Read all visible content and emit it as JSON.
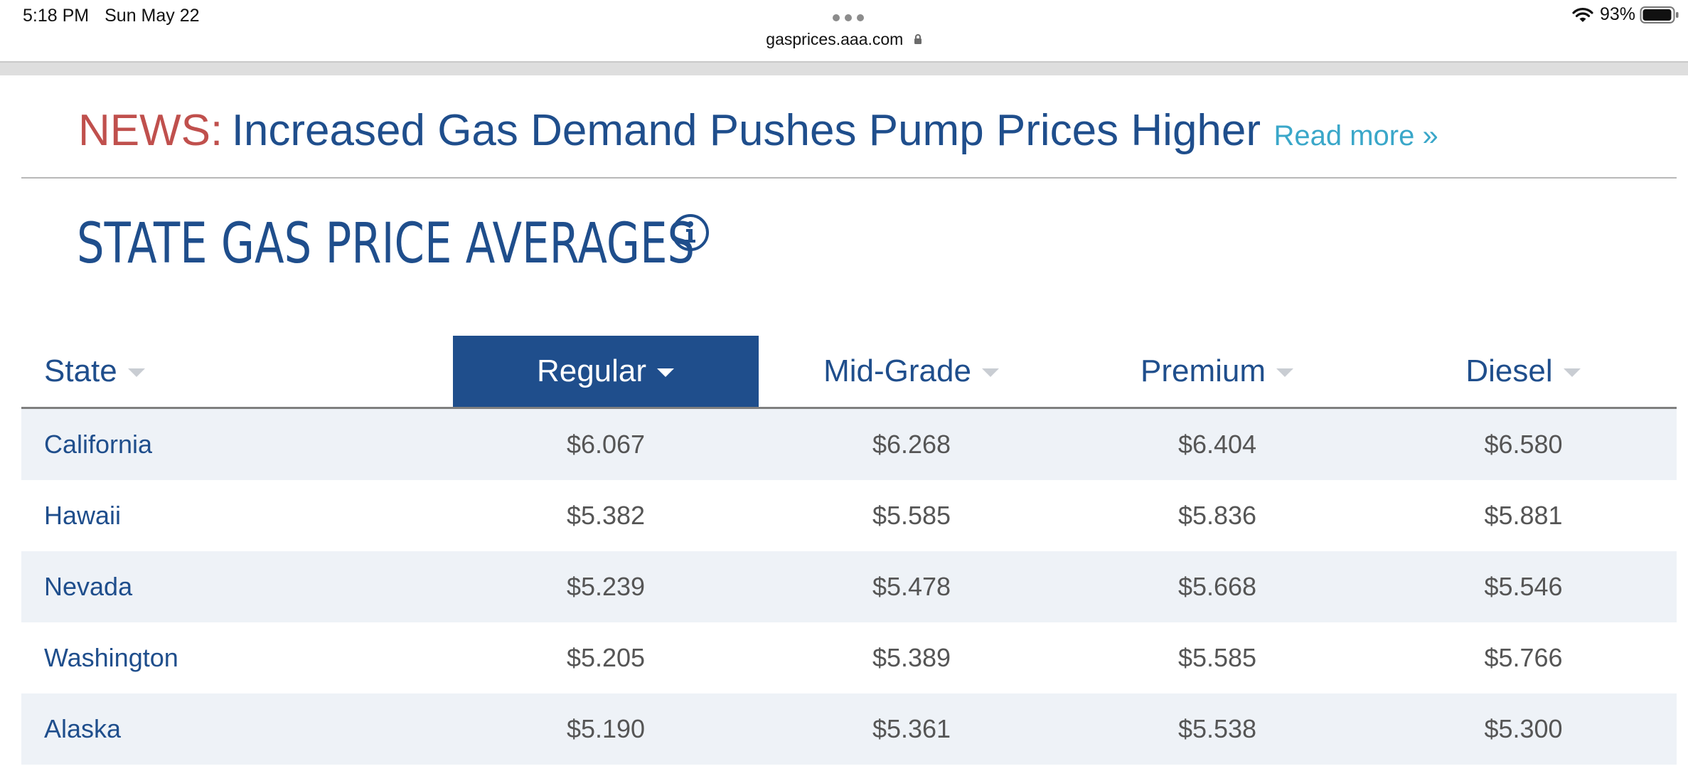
{
  "status_bar": {
    "time": "5:18 PM",
    "date": "Sun May 22",
    "url": "gasprices.aaa.com",
    "battery": "93%"
  },
  "news": {
    "label": "NEWS:",
    "headline": "Increased Gas Demand Pushes Pump Prices Higher",
    "read_more": "Read more »"
  },
  "section": {
    "title": "STATE GAS PRICE AVERAGES"
  },
  "table": {
    "columns": {
      "state": "State",
      "regular": "Regular",
      "mid_grade": "Mid-Grade",
      "premium": "Premium",
      "diesel": "Diesel"
    },
    "sorted_column": "Regular",
    "rows": [
      {
        "state": "California",
        "regular": "$6.067",
        "mid_grade": "$6.268",
        "premium": "$6.404",
        "diesel": "$6.580"
      },
      {
        "state": "Hawaii",
        "regular": "$5.382",
        "mid_grade": "$5.585",
        "premium": "$5.836",
        "diesel": "$5.881"
      },
      {
        "state": "Nevada",
        "regular": "$5.239",
        "mid_grade": "$5.478",
        "premium": "$5.668",
        "diesel": "$5.546"
      },
      {
        "state": "Washington",
        "regular": "$5.205",
        "mid_grade": "$5.389",
        "premium": "$5.585",
        "diesel": "$5.766"
      },
      {
        "state": "Alaska",
        "regular": "$5.190",
        "mid_grade": "$5.361",
        "premium": "$5.538",
        "diesel": "$5.300"
      }
    ]
  },
  "colors": {
    "brand_blue": "#1f4e8c",
    "news_red": "#c0504d",
    "link_teal": "#3aa7c9",
    "row_shade": "#eef2f7"
  },
  "icons": [
    "lock-icon",
    "wifi-icon",
    "battery-icon",
    "info-icon",
    "sort-caret-icon"
  ]
}
